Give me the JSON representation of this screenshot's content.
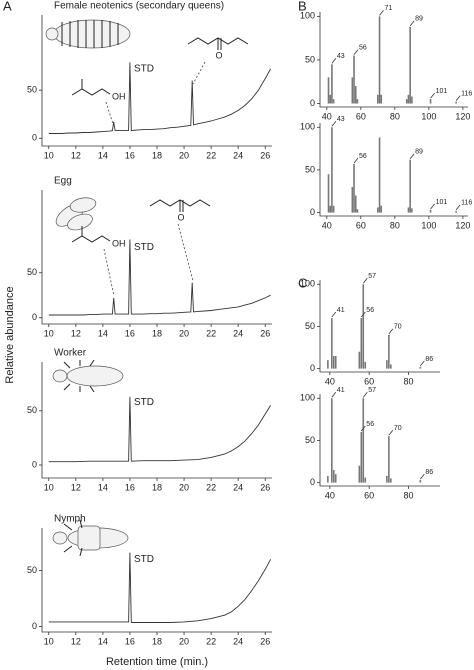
{
  "figure": {
    "panel_labels": [
      "A",
      "B",
      "C"
    ],
    "xlabel": "Retention time (min.)",
    "ylabel": "Relative abundance"
  },
  "chart_data": [
    {
      "type": "line",
      "title": "Female neotenics (secondary queens)",
      "color": "#333333",
      "x": [
        10,
        10.5,
        11,
        11.5,
        12,
        12.5,
        13,
        13.5,
        14,
        14.5,
        14.7,
        14.8,
        14.9,
        15.5,
        15.9,
        16,
        16.1,
        16.5,
        17,
        17.5,
        18,
        18.5,
        19,
        19.5,
        20,
        20.5,
        20.6,
        20.7,
        21,
        21.5,
        22,
        22.5,
        23,
        23.5,
        24,
        24.5,
        25,
        25.5,
        26,
        26.4
      ],
      "values": [
        5,
        5,
        5,
        5.5,
        5.5,
        6,
        6,
        6.5,
        7,
        7.5,
        8,
        17,
        8,
        8,
        8,
        79,
        8,
        8.5,
        9,
        9,
        9.5,
        10,
        11,
        11.5,
        12.5,
        13.5,
        60,
        14,
        15,
        16.5,
        18,
        20,
        22,
        25,
        29,
        34,
        41,
        50,
        62,
        72
      ],
      "xlim": [
        9.5,
        26.5
      ],
      "ylim": [
        -8,
        128
      ],
      "xticks": [
        10,
        12,
        14,
        16,
        18,
        20,
        22,
        24,
        26
      ],
      "yticks": [
        0,
        50
      ],
      "annotations": [
        {
          "text": "STD",
          "x": 16.3,
          "y": 72
        }
      ],
      "structure_labels": [
        "OH",
        "O"
      ]
    },
    {
      "type": "line",
      "title": "Egg",
      "color": "#333333",
      "x": [
        10,
        10.5,
        11,
        11.5,
        12,
        12.5,
        13,
        13.5,
        14,
        14.5,
        14.7,
        14.8,
        14.9,
        15.5,
        15.9,
        16,
        16.1,
        16.5,
        17,
        17.5,
        18,
        18.5,
        19,
        19.5,
        20,
        20.5,
        20.6,
        20.7,
        21,
        21.5,
        22,
        22.5,
        23,
        23.5,
        24,
        24.5,
        25,
        25.5,
        26,
        26.4
      ],
      "values": [
        3,
        3,
        3,
        3,
        3,
        3,
        3.5,
        3.5,
        4,
        4,
        4,
        22,
        4,
        4,
        4,
        87,
        4,
        4,
        4,
        4.5,
        4.5,
        5,
        5,
        5.5,
        6,
        6.5,
        39,
        6.5,
        7,
        7.5,
        8,
        9,
        10,
        11,
        12,
        14,
        16,
        19,
        22,
        25
      ],
      "xlim": [
        9.5,
        26.5
      ],
      "ylim": [
        -7,
        142
      ],
      "xticks": [
        10,
        12,
        14,
        16,
        18,
        20,
        22,
        24,
        26
      ],
      "yticks": [
        0,
        50
      ],
      "annotations": [
        {
          "text": "STD",
          "x": 16.3,
          "y": 78
        }
      ],
      "structure_labels": [
        "OH",
        "O"
      ]
    },
    {
      "type": "line",
      "title": "Worker",
      "color": "#333333",
      "x": [
        10,
        11,
        12,
        13,
        14,
        15,
        15.9,
        16,
        16.1,
        17,
        18,
        19,
        20,
        21,
        22,
        23,
        23.5,
        24,
        24.5,
        25,
        25.5,
        26,
        26.4
      ],
      "values": [
        3,
        3,
        3,
        3.5,
        3.5,
        3.5,
        3.5,
        63,
        3.5,
        4,
        4,
        4,
        4.5,
        5,
        7,
        10,
        13,
        17,
        22,
        29,
        37,
        47,
        55
      ],
      "xlim": [
        9.5,
        26.5
      ],
      "ylim": [
        -12,
        95
      ],
      "xticks": [
        10,
        12,
        14,
        16,
        18,
        20,
        22,
        24,
        26
      ],
      "yticks": [
        0,
        50
      ],
      "annotations": [
        {
          "text": "STD",
          "x": 16.3,
          "y": 58
        }
      ]
    },
    {
      "type": "line",
      "title": "Nymph",
      "color": "#333333",
      "x": [
        10,
        11,
        12,
        13,
        14,
        15,
        15.9,
        16,
        16.1,
        17,
        18,
        19,
        20,
        21,
        22,
        23,
        23.5,
        24,
        24.5,
        25,
        25.5,
        26,
        26.4
      ],
      "values": [
        4,
        4,
        4,
        4,
        4,
        4,
        4,
        66,
        3.5,
        3.5,
        3.5,
        3.5,
        4,
        5,
        7,
        10,
        13,
        18,
        24,
        32,
        41,
        51,
        60
      ],
      "xlim": [
        9.5,
        26.5
      ],
      "ylim": [
        -5,
        88
      ],
      "xticks": [
        10,
        12,
        14,
        16,
        18,
        20,
        22,
        24,
        26
      ],
      "yticks": [
        0,
        50
      ],
      "annotations": [
        {
          "text": "STD",
          "x": 16.3,
          "y": 60
        }
      ]
    },
    {
      "type": "bar",
      "color": "#777777",
      "x": [
        41,
        42,
        43,
        44,
        55,
        56,
        57,
        58,
        70,
        71,
        72,
        87,
        88,
        89,
        90,
        101,
        116
      ],
      "values": [
        30,
        10,
        45,
        5,
        30,
        55,
        20,
        5,
        10,
        100,
        10,
        5,
        10,
        88,
        8,
        5,
        2
      ],
      "xlim": [
        36,
        123
      ],
      "ylim": [
        -4,
        105
      ],
      "xticks": [
        40,
        60,
        80,
        100,
        120
      ],
      "yticks": [
        0,
        50,
        100
      ],
      "labeled_peaks": [
        43,
        56,
        71,
        89,
        101,
        116
      ]
    },
    {
      "type": "bar",
      "color": "#777777",
      "x": [
        41,
        42,
        43,
        44,
        55,
        56,
        57,
        58,
        70,
        71,
        72,
        88,
        89,
        90,
        101,
        116
      ],
      "values": [
        45,
        8,
        100,
        8,
        30,
        57,
        20,
        4,
        6,
        88,
        8,
        6,
        62,
        5,
        3,
        2
      ],
      "xlim": [
        36,
        123
      ],
      "ylim": [
        -4,
        105
      ],
      "xticks": [
        40,
        60,
        80,
        100,
        120
      ],
      "yticks": [
        0,
        50,
        100
      ],
      "labeled_peaks": [
        43,
        56,
        89,
        101,
        116
      ]
    },
    {
      "type": "bar",
      "color": "#777777",
      "x": [
        39,
        41,
        42,
        43,
        55,
        56,
        57,
        58,
        69,
        70,
        71,
        86
      ],
      "values": [
        10,
        60,
        15,
        15,
        20,
        60,
        100,
        8,
        10,
        40,
        5,
        2
      ],
      "xlim": [
        35,
        96
      ],
      "ylim": [
        -4,
        105
      ],
      "xticks": [
        40,
        60,
        80
      ],
      "yticks": [
        0,
        50,
        100
      ],
      "labeled_peaks": [
        41,
        56,
        57,
        70,
        86
      ]
    },
    {
      "type": "bar",
      "color": "#777777",
      "x": [
        39,
        41,
        42,
        43,
        55,
        56,
        57,
        58,
        69,
        70,
        71,
        86
      ],
      "values": [
        8,
        100,
        15,
        10,
        20,
        60,
        100,
        6,
        8,
        55,
        5,
        3
      ],
      "xlim": [
        35,
        96
      ],
      "ylim": [
        -4,
        105
      ],
      "xticks": [
        40,
        60,
        80
      ],
      "yticks": [
        0,
        50,
        100
      ],
      "labeled_peaks": [
        41,
        56,
        57,
        70,
        86
      ]
    }
  ]
}
